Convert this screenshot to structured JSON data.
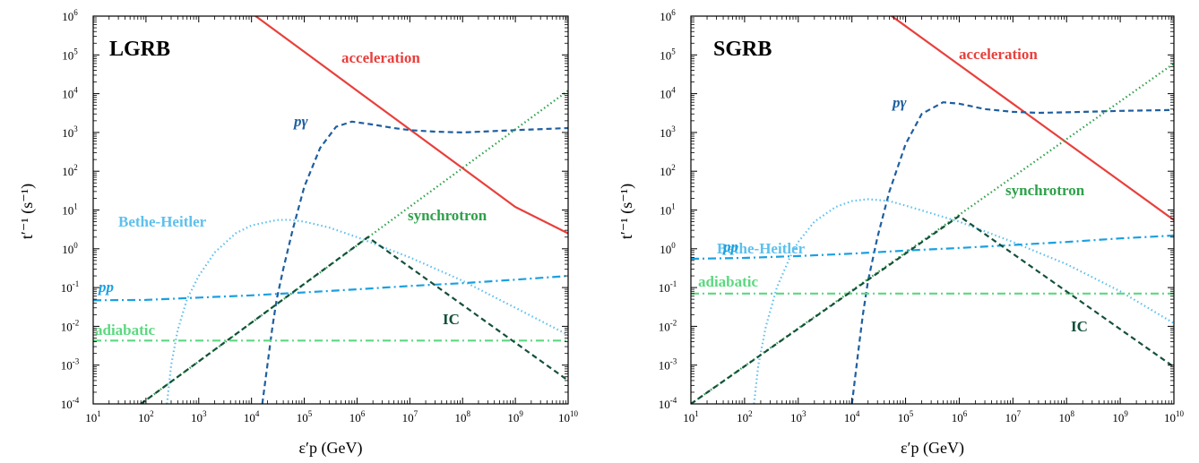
{
  "chart_data": [
    {
      "type": "line",
      "panel_label": "LGRB",
      "xlabel": "ε′p (GeV)",
      "ylabel": "t′⁻¹ (s⁻¹)",
      "xscale": "log",
      "yscale": "log",
      "xlim": [
        10,
        10000000000
      ],
      "ylim": [
        0.0001,
        1000000
      ],
      "x_tick_exponents": [
        1,
        2,
        3,
        4,
        5,
        6,
        7,
        8,
        9,
        10
      ],
      "y_tick_exponents": [
        -4,
        -3,
        -2,
        -1,
        0,
        1,
        2,
        3,
        4,
        5,
        6
      ],
      "grid": false,
      "series": [
        {
          "name": "acceleration",
          "color": "#e8403c",
          "style": "solid",
          "x": [
            10000.0,
            100000.0,
            1000000.0,
            10000000.0,
            100000000.0,
            1000000000.0,
            10000000000.0
          ],
          "y": [
            1200000.0,
            120000.0,
            12000.0,
            1200.0,
            120.0,
            12,
            2.5
          ]
        },
        {
          "name": "pγ",
          "color": "#1f5fa0",
          "style": "dashed",
          "x": [
            16000.0,
            20000.0,
            25000.0,
            30000.0,
            40000.0,
            60000.0,
            100000.0,
            200000.0,
            400000.0,
            800000.0,
            2000000.0,
            5000000.0,
            10000000.0,
            30000000.0,
            100000000.0,
            1000000000.0,
            10000000000.0
          ],
          "y": [
            0.0001,
            0.001,
            0.01,
            0.05,
            0.3,
            3,
            40,
            400,
            1400,
            1900,
            1600,
            1300,
            1150,
            1050,
            1000,
            1150,
            1300
          ]
        },
        {
          "name": "synchrotron",
          "color": "#2ea04a",
          "style": "dotted",
          "x": [
            80,
            10000000000.0
          ],
          "y": [
            0.0001,
            12000
          ]
        },
        {
          "name": "Bethe-Heitler",
          "color": "#5cc0ee",
          "style": "dotted",
          "x": [
            250,
            300,
            400,
            600,
            1000.0,
            2000.0,
            5000.0,
            10000.0,
            30000.0,
            50000.0,
            100000.0,
            300000.0,
            1000000.0,
            10000000.0,
            100000000.0,
            1000000000.0,
            10000000000.0
          ],
          "y": [
            0.0001,
            0.001,
            0.008,
            0.05,
            0.2,
            0.8,
            2.5,
            4,
            5.5,
            5.6,
            5,
            3.5,
            2,
            0.6,
            0.15,
            0.03,
            0.006
          ]
        },
        {
          "name": "pp",
          "color": "#1ba0e0",
          "style": "dashdot",
          "x": [
            10,
            100,
            1000.0,
            10000.0,
            100000.0,
            1000000.0,
            10000000.0,
            100000000.0,
            1000000000.0,
            10000000000.0
          ],
          "y": [
            0.047,
            0.048,
            0.055,
            0.063,
            0.075,
            0.09,
            0.11,
            0.13,
            0.16,
            0.2
          ]
        },
        {
          "name": "adiabatic",
          "color": "#5cd880",
          "style": "dashdot",
          "x": [
            10,
            10000000000.0
          ],
          "y": [
            0.0043,
            0.0043
          ]
        },
        {
          "name": "IC",
          "color": "#14503a",
          "style": "dashed",
          "x": [
            80,
            1600000.0,
            10000000000.0
          ],
          "y": [
            0.0001,
            2,
            0.0004
          ]
        }
      ],
      "labels": [
        "acceleration",
        "pγ",
        "Bethe-Heitler",
        "synchrotron",
        "pp",
        "adiabatic",
        "IC"
      ]
    },
    {
      "type": "line",
      "panel_label": "SGRB",
      "xlabel": "ε′p (GeV)",
      "ylabel": "t′⁻¹ (s⁻¹)",
      "xscale": "log",
      "yscale": "log",
      "xlim": [
        10,
        10000000000
      ],
      "ylim": [
        0.0001,
        1000000
      ],
      "x_tick_exponents": [
        1,
        2,
        3,
        4,
        5,
        6,
        7,
        8,
        9,
        10
      ],
      "y_tick_exponents": [
        -4,
        -3,
        -2,
        -1,
        0,
        1,
        2,
        3,
        4,
        5,
        6
      ],
      "grid": false,
      "series": [
        {
          "name": "acceleration",
          "color": "#e8403c",
          "style": "solid",
          "x": [
            10000.0,
            100000.0,
            1000000.0,
            10000000.0,
            100000000.0,
            1000000000.0,
            10000000000.0
          ],
          "y": [
            5500000.0,
            550000.0,
            55000.0,
            5500.0,
            550,
            55,
            5.5
          ]
        },
        {
          "name": "pγ",
          "color": "#1f5fa0",
          "style": "dashed",
          "x": [
            10000.0,
            13000.0,
            16000.0,
            20000.0,
            30000.0,
            50000.0,
            100000.0,
            200000.0,
            500000.0,
            1000000.0,
            3000000.0,
            10000000.0,
            30000000.0,
            100000000.0,
            1000000000.0,
            10000000000.0
          ],
          "y": [
            0.0001,
            0.002,
            0.02,
            0.15,
            2,
            30,
            500,
            3000,
            6000,
            5500,
            4000,
            3400,
            3200,
            3300,
            3600,
            3800
          ]
        },
        {
          "name": "synchrotron",
          "color": "#2ea04a",
          "style": "dotted",
          "x": [
            10,
            10000000000.0
          ],
          "y": [
            0.0001,
            60000
          ]
        },
        {
          "name": "Bethe-Heitler",
          "color": "#5cc0ee",
          "style": "dotted",
          "x": [
            150,
            180,
            250,
            400,
            700,
            1000.0,
            2000.0,
            5000.0,
            10000.0,
            20000.0,
            50000.0,
            100000.0,
            1000000.0,
            10000000.0,
            100000000.0,
            1000000000.0,
            10000000000.0
          ],
          "y": [
            0.0001,
            0.001,
            0.01,
            0.1,
            0.6,
            1.5,
            5,
            12,
            17,
            19,
            17,
            13,
            5,
            1.5,
            0.4,
            0.08,
            0.012
          ]
        },
        {
          "name": "pp",
          "color": "#1ba0e0",
          "style": "dashdot",
          "x": [
            10,
            100,
            1000.0,
            10000.0,
            100000.0,
            1000000.0,
            10000000.0,
            100000000.0,
            1000000000.0,
            10000000000.0
          ],
          "y": [
            0.55,
            0.58,
            0.65,
            0.75,
            0.9,
            1.05,
            1.25,
            1.5,
            1.85,
            2.2
          ]
        },
        {
          "name": "adiabatic",
          "color": "#5cd880",
          "style": "dashdot",
          "x": [
            10,
            10000000000.0
          ],
          "y": [
            0.07,
            0.07
          ]
        },
        {
          "name": "IC",
          "color": "#14503a",
          "style": "dashed",
          "x": [
            10,
            1000000.0,
            10000000000.0
          ],
          "y": [
            0.0001,
            7,
            0.0009
          ]
        }
      ],
      "labels": [
        "acceleration",
        "pγ",
        "Bethe-Heitler",
        "synchrotron",
        "pp",
        "adiabatic",
        "IC"
      ]
    }
  ]
}
